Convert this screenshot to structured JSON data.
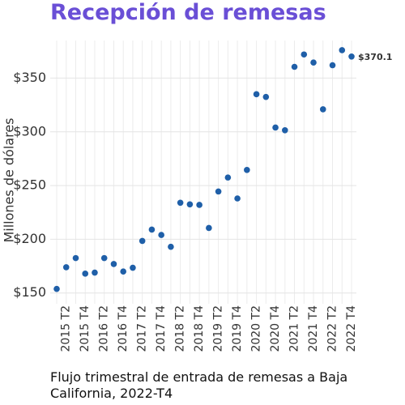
{
  "chart_data": {
    "type": "line",
    "title": "Recepción de remesas",
    "y_label": "Millones de dólares",
    "caption": "Flujo trimestral de entrada de remesas a Baja California, 2022-T4",
    "categories": [
      null,
      "2015 T2",
      null,
      "2015 T4",
      null,
      "2016 T2",
      null,
      "2016 T4",
      null,
      "2017 T2",
      null,
      "2017 T4",
      null,
      "2018 T2",
      null,
      "2018 T4",
      null,
      "2019 T2",
      null,
      "2019 T4",
      null,
      "2020 T2",
      null,
      "2020 T4",
      null,
      "2021 T2",
      null,
      "2021 T4",
      null,
      "2022 T2",
      null,
      "2022 T4"
    ],
    "series": [
      {
        "name": null,
        "color": "#1f5fa8",
        "values": [
          153.8,
          174,
          182.5,
          168,
          169,
          182.5,
          177,
          170,
          173.5,
          198.5,
          209,
          204,
          193,
          234,
          232.5,
          232,
          210.5,
          244.5,
          257.5,
          238,
          264.5,
          335,
          332.5,
          304,
          301.5,
          360.5,
          372,
          364.5,
          321,
          362,
          376,
          370.1
        ],
        "value_labels": [
          null,
          null,
          null,
          null,
          null,
          null,
          null,
          null,
          null,
          null,
          null,
          null,
          null,
          null,
          null,
          null,
          null,
          null,
          null,
          null,
          null,
          null,
          null,
          null,
          null,
          null,
          null,
          null,
          null,
          null,
          null,
          "$370.1"
        ]
      }
    ],
    "ylim": [
      140,
      385
    ],
    "yticks": [
      {
        "value": 150,
        "label": "$150"
      },
      {
        "value": 200,
        "label": "$200"
      },
      {
        "value": 250,
        "label": "$250"
      },
      {
        "value": 300,
        "label": "$300"
      },
      {
        "value": 350,
        "label": "$350"
      }
    ],
    "grid": true
  }
}
